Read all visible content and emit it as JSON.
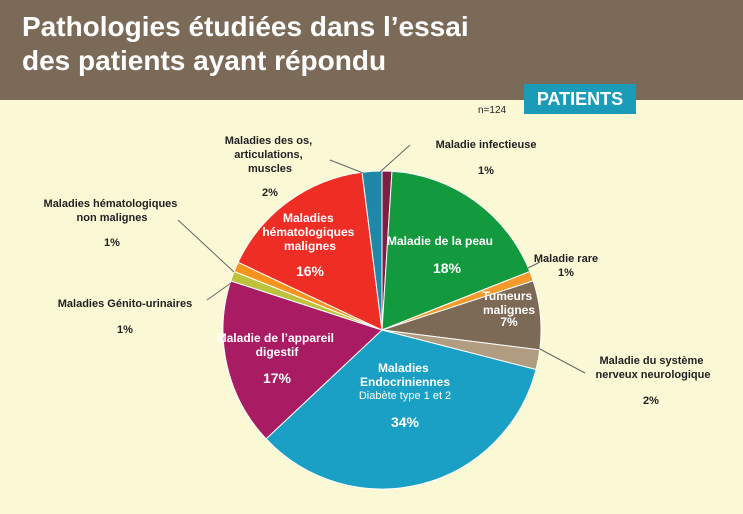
{
  "title_line1": "Pathologies étudiées dans l’essai",
  "title_line2": "des patients ayant répondu",
  "badge": "PATIENTS",
  "n": "n=124",
  "colors": {
    "header": "#7c6a58",
    "background": "#fbf8d6",
    "badge": "#1a9bb8"
  },
  "chart_data": {
    "type": "pie",
    "slices": [
      {
        "name": "Maladie infectieuse",
        "label": "1%",
        "value": 1,
        "color": "#7d1f45"
      },
      {
        "name": "Maladie de la peau",
        "label": "18%",
        "value": 18,
        "color": "#139a3f"
      },
      {
        "name": "Maladie rare",
        "label": "1%",
        "value": 1,
        "color": "#f39a2c"
      },
      {
        "name": "Tumeurs malignes",
        "label": "7%",
        "value": 7,
        "color": "#7d6a56"
      },
      {
        "name": "Maladie du système nerveux neurologique",
        "label": "2%",
        "value": 2,
        "color": "#b09c80"
      },
      {
        "name": "Maladies Endocriniennes",
        "sublabel": "Diabète type 1 et 2",
        "label": "34%",
        "value": 34,
        "color": "#1aa0c4"
      },
      {
        "name": "Maladie de l’appareil digestif",
        "label": "17%",
        "value": 17,
        "color": "#a91c63"
      },
      {
        "name": "Maladies Génito-urinaires",
        "label": "1%",
        "value": 1,
        "color": "#bcc23a"
      },
      {
        "name": "Maladies hématologiques non malignes",
        "label": "1%",
        "value": 1,
        "color": "#f7941d"
      },
      {
        "name": "Maladies hématologiques malignes",
        "label": "16%",
        "value": 16,
        "color": "#ee2d24"
      },
      {
        "name": "Maladies des os, articulations, muscles",
        "label": "2%",
        "value": 2,
        "color": "#1f87a8"
      }
    ]
  }
}
